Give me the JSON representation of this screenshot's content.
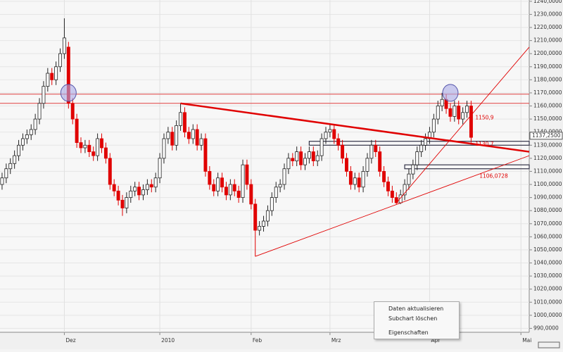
{
  "chart_data": {
    "type": "candlestick",
    "x_labels": [
      {
        "index": 15,
        "label": "Dez"
      },
      {
        "index": 38,
        "label": "2010"
      },
      {
        "index": 60,
        "label": "Feb"
      },
      {
        "index": 79,
        "label": "Mrz"
      },
      {
        "index": 103,
        "label": "Apr"
      },
      {
        "index": 125,
        "label": "Mai"
      }
    ],
    "xlim": [
      -0.5,
      127
    ],
    "ylim": [
      987,
      1241
    ],
    "yticks": [
      {
        "value": 1240,
        "label": "1240,0000"
      },
      {
        "value": 1230,
        "label": "1230,0000"
      },
      {
        "value": 1220,
        "label": "1220,0000"
      },
      {
        "value": 1210,
        "label": "1210,0000"
      },
      {
        "value": 1200,
        "label": "1200,0000"
      },
      {
        "value": 1190,
        "label": "1190,0000"
      },
      {
        "value": 1180,
        "label": "1180,0000"
      },
      {
        "value": 1170,
        "label": "1170,0000"
      },
      {
        "value": 1160,
        "label": "1160,0000"
      },
      {
        "value": 1150,
        "label": "1150,0000"
      },
      {
        "value": 1140,
        "label": "1140,0000"
      },
      {
        "value": 1130,
        "label": "1130,0000"
      },
      {
        "value": 1120,
        "label": "1120,0000"
      },
      {
        "value": 1110,
        "label": "1110,0000"
      },
      {
        "value": 1100,
        "label": "1100,0000"
      },
      {
        "value": 1090,
        "label": "1090,0000"
      },
      {
        "value": 1080,
        "label": "1080,0000"
      },
      {
        "value": 1070,
        "label": "1070,0000"
      },
      {
        "value": 1060,
        "label": "1060,0000"
      },
      {
        "value": 1050,
        "label": "1050,0000"
      },
      {
        "value": 1040,
        "label": "1040,0000"
      },
      {
        "value": 1030,
        "label": "1030,0000"
      },
      {
        "value": 1020,
        "label": "1020,0000"
      },
      {
        "value": 1010,
        "label": "1010,0000"
      },
      {
        "value": 1000,
        "label": "1000,0000"
      },
      {
        "value": 990,
        "label": "990,0000"
      }
    ],
    "grid": true,
    "up_color": "#ffffff",
    "down_color": "#e00000",
    "candles": [
      [
        1100,
        1109,
        1096,
        1105
      ],
      [
        1105,
        1116,
        1101,
        1112
      ],
      [
        1112,
        1120,
        1108,
        1116
      ],
      [
        1116,
        1126,
        1112,
        1122
      ],
      [
        1122,
        1134,
        1118,
        1130
      ],
      [
        1130,
        1139,
        1126,
        1135
      ],
      [
        1135,
        1142,
        1131,
        1138
      ],
      [
        1138,
        1146,
        1134,
        1142
      ],
      [
        1142,
        1154,
        1138,
        1150
      ],
      [
        1150,
        1166,
        1146,
        1162
      ],
      [
        1162,
        1179,
        1158,
        1175
      ],
      [
        1175,
        1189,
        1171,
        1185
      ],
      [
        1185,
        1189,
        1176,
        1180
      ],
      [
        1180,
        1194,
        1176,
        1190
      ],
      [
        1190,
        1204,
        1186,
        1200
      ],
      [
        1200,
        1227,
        1196,
        1212
      ],
      [
        1205,
        1209,
        1158,
        1162
      ],
      [
        1162,
        1166,
        1146,
        1150
      ],
      [
        1150,
        1154,
        1128,
        1132
      ],
      [
        1132,
        1136,
        1124,
        1128
      ],
      [
        1128,
        1134,
        1124,
        1130
      ],
      [
        1130,
        1134,
        1121,
        1125
      ],
      [
        1125,
        1129,
        1118,
        1122
      ],
      [
        1122,
        1139,
        1118,
        1135
      ],
      [
        1135,
        1139,
        1124,
        1128
      ],
      [
        1128,
        1132,
        1116,
        1120
      ],
      [
        1120,
        1124,
        1096,
        1100
      ],
      [
        1100,
        1104,
        1091,
        1095
      ],
      [
        1095,
        1099,
        1084,
        1088
      ],
      [
        1088,
        1092,
        1076,
        1082
      ],
      [
        1082,
        1094,
        1078,
        1090
      ],
      [
        1090,
        1099,
        1086,
        1095
      ],
      [
        1095,
        1102,
        1091,
        1098
      ],
      [
        1098,
        1102,
        1088,
        1092
      ],
      [
        1092,
        1100,
        1088,
        1096
      ],
      [
        1096,
        1104,
        1092,
        1100
      ],
      [
        1100,
        1104,
        1094,
        1098
      ],
      [
        1098,
        1109,
        1094,
        1105
      ],
      [
        1105,
        1124,
        1101,
        1120
      ],
      [
        1120,
        1139,
        1116,
        1135
      ],
      [
        1135,
        1144,
        1131,
        1140
      ],
      [
        1140,
        1144,
        1126,
        1130
      ],
      [
        1130,
        1149,
        1126,
        1145
      ],
      [
        1145,
        1162,
        1141,
        1155
      ],
      [
        1155,
        1159,
        1136,
        1140
      ],
      [
        1140,
        1144,
        1131,
        1135
      ],
      [
        1135,
        1146,
        1131,
        1142
      ],
      [
        1142,
        1146,
        1126,
        1130
      ],
      [
        1130,
        1139,
        1126,
        1135
      ],
      [
        1135,
        1139,
        1106,
        1110
      ],
      [
        1110,
        1114,
        1096,
        1100
      ],
      [
        1100,
        1104,
        1091,
        1095
      ],
      [
        1095,
        1109,
        1091,
        1105
      ],
      [
        1105,
        1109,
        1094,
        1098
      ],
      [
        1098,
        1102,
        1088,
        1092
      ],
      [
        1092,
        1104,
        1088,
        1100
      ],
      [
        1100,
        1104,
        1091,
        1095
      ],
      [
        1095,
        1099,
        1086,
        1090
      ],
      [
        1090,
        1119,
        1086,
        1115
      ],
      [
        1115,
        1119,
        1096,
        1100
      ],
      [
        1100,
        1104,
        1081,
        1085
      ],
      [
        1085,
        1089,
        1045,
        1065
      ],
      [
        1065,
        1072,
        1061,
        1068
      ],
      [
        1068,
        1076,
        1064,
        1072
      ],
      [
        1072,
        1084,
        1068,
        1080
      ],
      [
        1080,
        1094,
        1076,
        1090
      ],
      [
        1090,
        1102,
        1086,
        1098
      ],
      [
        1098,
        1104,
        1094,
        1100
      ],
      [
        1100,
        1116,
        1096,
        1112
      ],
      [
        1112,
        1124,
        1108,
        1120
      ],
      [
        1120,
        1124,
        1114,
        1118
      ],
      [
        1118,
        1129,
        1114,
        1125
      ],
      [
        1125,
        1129,
        1111,
        1115
      ],
      [
        1115,
        1124,
        1111,
        1120
      ],
      [
        1120,
        1129,
        1116,
        1125
      ],
      [
        1125,
        1129,
        1114,
        1118
      ],
      [
        1118,
        1126,
        1114,
        1122
      ],
      [
        1122,
        1139,
        1118,
        1135
      ],
      [
        1135,
        1144,
        1131,
        1140
      ],
      [
        1140,
        1146,
        1136,
        1142
      ],
      [
        1142,
        1146,
        1131,
        1135
      ],
      [
        1135,
        1139,
        1126,
        1130
      ],
      [
        1130,
        1134,
        1116,
        1120
      ],
      [
        1120,
        1124,
        1106,
        1110
      ],
      [
        1110,
        1114,
        1096,
        1100
      ],
      [
        1100,
        1109,
        1096,
        1105
      ],
      [
        1105,
        1109,
        1094,
        1098
      ],
      [
        1098,
        1114,
        1094,
        1110
      ],
      [
        1110,
        1124,
        1106,
        1120
      ],
      [
        1120,
        1134,
        1116,
        1130
      ],
      [
        1130,
        1134,
        1121,
        1125
      ],
      [
        1125,
        1129,
        1106,
        1110
      ],
      [
        1110,
        1114,
        1098,
        1102
      ],
      [
        1102,
        1106,
        1091,
        1095
      ],
      [
        1095,
        1099,
        1086,
        1090
      ],
      [
        1090,
        1094,
        1085,
        1086
      ],
      [
        1086,
        1096,
        1085,
        1092
      ],
      [
        1092,
        1104,
        1088,
        1100
      ],
      [
        1100,
        1112,
        1096,
        1108
      ],
      [
        1108,
        1119,
        1104,
        1115
      ],
      [
        1115,
        1129,
        1111,
        1125
      ],
      [
        1125,
        1134,
        1121,
        1130
      ],
      [
        1130,
        1139,
        1126,
        1135
      ],
      [
        1135,
        1144,
        1131,
        1140
      ],
      [
        1140,
        1154,
        1136,
        1150
      ],
      [
        1150,
        1164,
        1146,
        1160
      ],
      [
        1160,
        1170,
        1156,
        1165
      ],
      [
        1165,
        1169,
        1154,
        1158
      ],
      [
        1158,
        1162,
        1148,
        1152
      ],
      [
        1152,
        1164,
        1148,
        1160
      ],
      [
        1160,
        1164,
        1146,
        1150
      ],
      [
        1150,
        1159,
        1146,
        1155
      ],
      [
        1155,
        1164,
        1151,
        1160
      ],
      [
        1160,
        1164,
        1132,
        1136
      ]
    ],
    "hlines": [
      1169,
      1162
    ],
    "trendlines": [
      {
        "from": [
          43,
          1162
        ],
        "to": [
          127,
          1125
        ],
        "bold": true
      },
      {
        "from": [
          61,
          1045
        ],
        "to": [
          127,
          1122
        ],
        "bold": false
      },
      {
        "from": [
          95,
          1086
        ],
        "to": [
          127,
          1205
        ],
        "bold": false
      }
    ],
    "zones": [
      {
        "from": 74,
        "top": 1133,
        "bottom": 1130
      },
      {
        "from": 97,
        "top": 1115,
        "bottom": 1112
      }
    ],
    "markers": [
      [
        16,
        1170
      ],
      [
        108,
        1170
      ]
    ],
    "annotations": [
      {
        "index": 114,
        "value": 1150.9,
        "label": "1150,9"
      },
      {
        "index": 114,
        "value": 1130.7,
        "label": "1130,7"
      },
      {
        "index": 115,
        "value": 1106.0728,
        "label": "1106,0728"
      }
    ],
    "last_price": {
      "value": 1137.25,
      "label": "1137,2500"
    }
  },
  "context_menu": {
    "items": [
      "Daten aktualisieren",
      "Subchart löschen",
      "Eigenschaften"
    ]
  }
}
